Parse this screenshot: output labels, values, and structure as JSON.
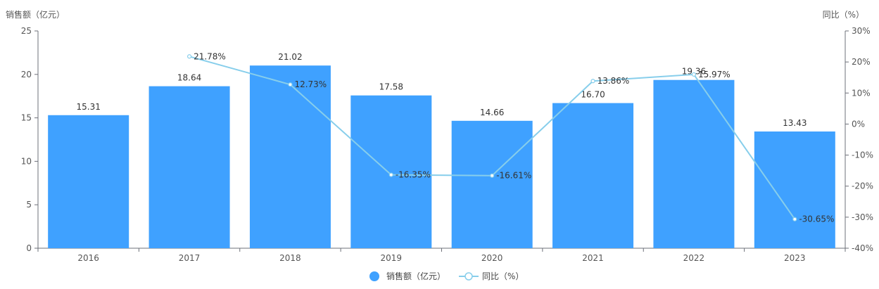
{
  "chart_data": {
    "type": "bar",
    "categories": [
      "2016",
      "2017",
      "2018",
      "2019",
      "2020",
      "2021",
      "2022",
      "2023"
    ],
    "series": [
      {
        "name": "销售额（亿元）",
        "type": "bar",
        "axis": "left",
        "color": "#3fa1ff",
        "values": [
          15.31,
          18.64,
          21.02,
          17.58,
          14.66,
          16.7,
          19.36,
          13.43
        ],
        "labels": [
          "15.31",
          "18.64",
          "21.02",
          "17.58",
          "14.66",
          "16.70",
          "19.36",
          "13.43"
        ]
      },
      {
        "name": "同比（%）",
        "type": "line",
        "axis": "right",
        "color": "#87ceeb",
        "values": [
          null,
          21.78,
          12.73,
          -16.35,
          -16.61,
          13.86,
          15.97,
          -30.65
        ],
        "labels": [
          "",
          "21.78%",
          "12.73%",
          "-16.35%",
          "-16.61%",
          "13.86%",
          "15.97%",
          "-30.65%"
        ]
      }
    ],
    "y_left": {
      "label": "销售额（亿元）",
      "ylim": [
        0,
        25
      ],
      "ticks": [
        "0",
        "5",
        "10",
        "15",
        "20",
        "25"
      ]
    },
    "y_right": {
      "label": "同比（%）",
      "ylim": [
        -40,
        30
      ],
      "ticks": [
        "-40%",
        "-30%",
        "-20%",
        "-10%",
        "0%",
        "10%",
        "20%",
        "30%"
      ]
    },
    "grid": false,
    "legend": {
      "position": "bottom-center",
      "items": [
        "销售额（亿元）",
        "同比（%）"
      ]
    }
  }
}
